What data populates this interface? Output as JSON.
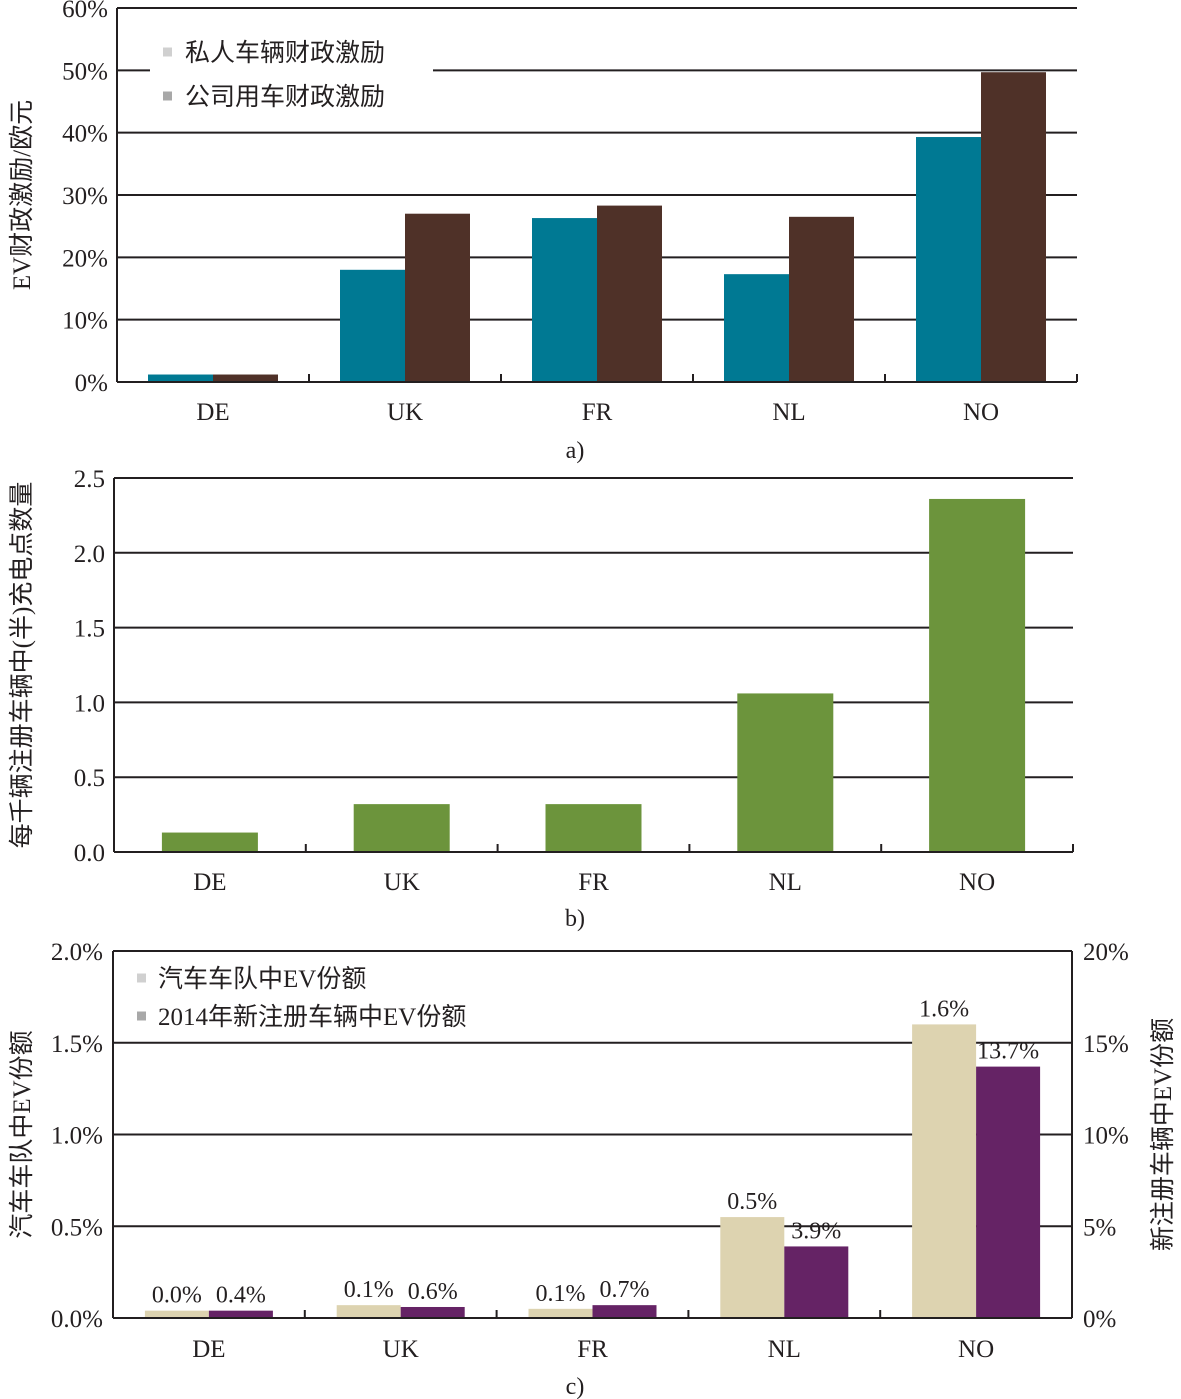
{
  "chart_data": [
    {
      "id": "a",
      "type": "bar",
      "caption": "a)",
      "title": "",
      "xlabel": "",
      "ylabel": "EV财政激励/欧元",
      "ylim": [
        0,
        60
      ],
      "yticks": [
        "0%",
        "10%",
        "20%",
        "30%",
        "40%",
        "50%",
        "60%"
      ],
      "ytick_values": [
        0,
        10,
        20,
        30,
        40,
        50,
        60
      ],
      "grid": true,
      "legend_position": "top-left",
      "categories": [
        "DE",
        "UK",
        "FR",
        "NL",
        "NO"
      ],
      "series": [
        {
          "name": "私人车辆财政激励",
          "color": "#007993",
          "values": [
            1.2,
            18.0,
            26.3,
            17.3,
            39.3
          ]
        },
        {
          "name": "公司用车财政激励",
          "color": "#4f3128",
          "values": [
            1.2,
            27.0,
            28.3,
            26.5,
            49.7
          ]
        }
      ]
    },
    {
      "id": "b",
      "type": "bar",
      "caption": "b)",
      "title": "",
      "xlabel": "",
      "ylabel": "每千辆注册车辆中(半)充电点数量",
      "ylim": [
        0,
        2.5
      ],
      "yticks": [
        "0.0",
        "0.5",
        "1.0",
        "1.5",
        "2.0",
        "2.5"
      ],
      "ytick_values": [
        0,
        0.5,
        1.0,
        1.5,
        2.0,
        2.5
      ],
      "grid": true,
      "categories": [
        "DE",
        "UK",
        "FR",
        "NL",
        "NO"
      ],
      "series": [
        {
          "name": "充电点数量",
          "color": "#6c943c",
          "values": [
            0.13,
            0.32,
            0.32,
            1.06,
            2.36
          ]
        }
      ]
    },
    {
      "id": "c",
      "type": "bar",
      "caption": "c)",
      "title": "",
      "xlabel": "",
      "ylabel": "汽车车队中EV份额",
      "ylabel_right": "新注册车辆中EV份额",
      "ylim": [
        0,
        2.0
      ],
      "ylim_right": [
        0,
        20
      ],
      "yticks": [
        "0.0%",
        "0.5%",
        "1.0%",
        "1.5%",
        "2.0%"
      ],
      "ytick_values": [
        0,
        0.5,
        1.0,
        1.5,
        2.0
      ],
      "yticks_right": [
        "0%",
        "5%",
        "10%",
        "15%",
        "20%"
      ],
      "ytick_values_right": [
        0,
        5,
        10,
        15,
        20
      ],
      "grid": true,
      "legend_position": "top-left",
      "categories": [
        "DE",
        "UK",
        "FR",
        "NL",
        "NO"
      ],
      "series": [
        {
          "name": "汽车车队中EV份额",
          "axis": "left",
          "color": "#ddd3b0",
          "values": [
            0.04,
            0.07,
            0.05,
            0.55,
            1.6
          ],
          "labels": [
            "0.0%",
            "0.1%",
            "0.1%",
            "0.5%",
            "1.6%"
          ]
        },
        {
          "name": "2014年新注册车辆中EV份额",
          "axis": "right",
          "color": "#652365",
          "values": [
            0.4,
            0.6,
            0.7,
            3.9,
            13.7
          ],
          "labels": [
            "0.4%",
            "0.6%",
            "0.7%",
            "3.9%",
            "13.7%"
          ]
        }
      ]
    }
  ]
}
